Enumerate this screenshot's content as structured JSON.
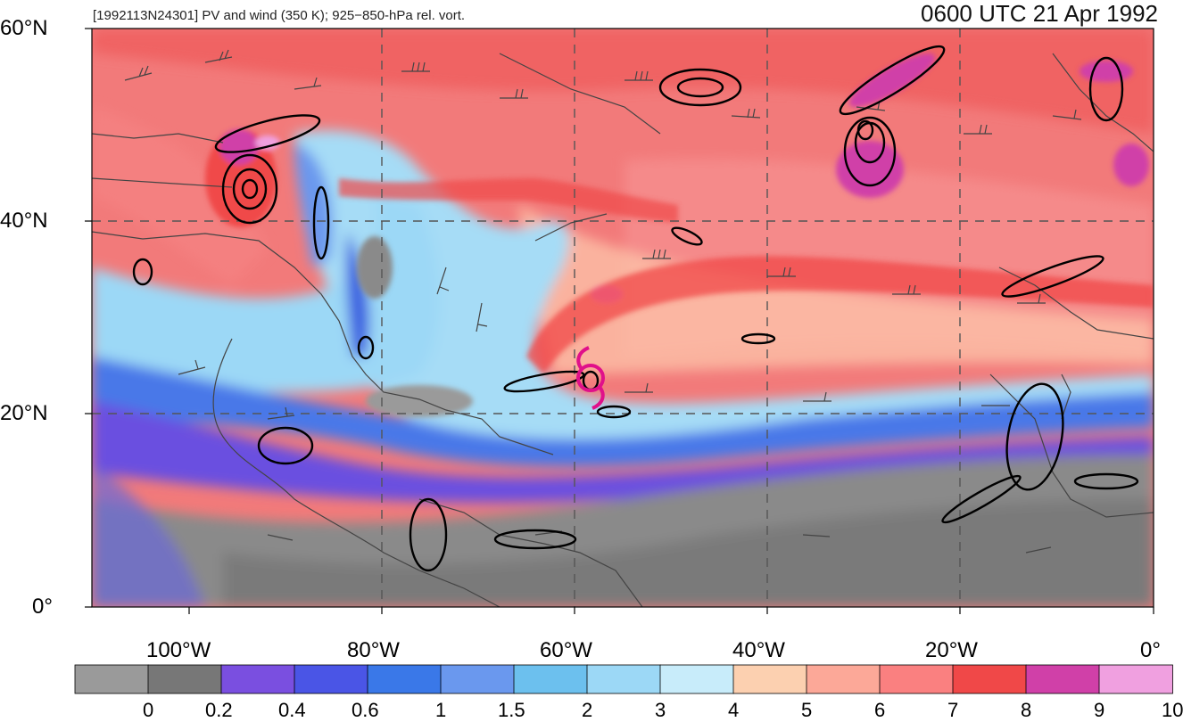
{
  "header": {
    "storm_label": "[1992113N24301] PV and wind (350 K); 925−850-hPa rel. vort.",
    "valid_time": "0600 UTC 21 Apr 1992"
  },
  "axes": {
    "lat_labels": [
      "60°N",
      "40°N",
      "20°N",
      "0°"
    ],
    "lon_labels": [
      "100°W",
      "80°W",
      "60°W",
      "40°W",
      "20°W",
      "0°"
    ]
  },
  "colorbar": {
    "labels": [
      "0",
      "0.2",
      "0.4",
      "0.6",
      "1",
      "1.5",
      "2",
      "3",
      "4",
      "5",
      "6",
      "7",
      "8",
      "9",
      "10"
    ],
    "colors": [
      "#9a9a9a",
      "#777777",
      "#7a4fe0",
      "#4a55e6",
      "#3a78e8",
      "#6a98ee",
      "#6cc0ee",
      "#9cd8f6",
      "#c8ecfa",
      "#fcd0b0",
      "#fca898",
      "#fa8080",
      "#f04848",
      "#d040a8",
      "#f0a0e0"
    ]
  },
  "map": {
    "palette": {
      "gray": "#8a8a8a",
      "purple": "#7a4fe0",
      "blue": "#3a78e8",
      "lightblue": "#9cd8f6",
      "pink": "#fca898",
      "red": "#f06060",
      "magenta": "#d040a8",
      "cyclone_symbol": "#e0108a"
    }
  }
}
